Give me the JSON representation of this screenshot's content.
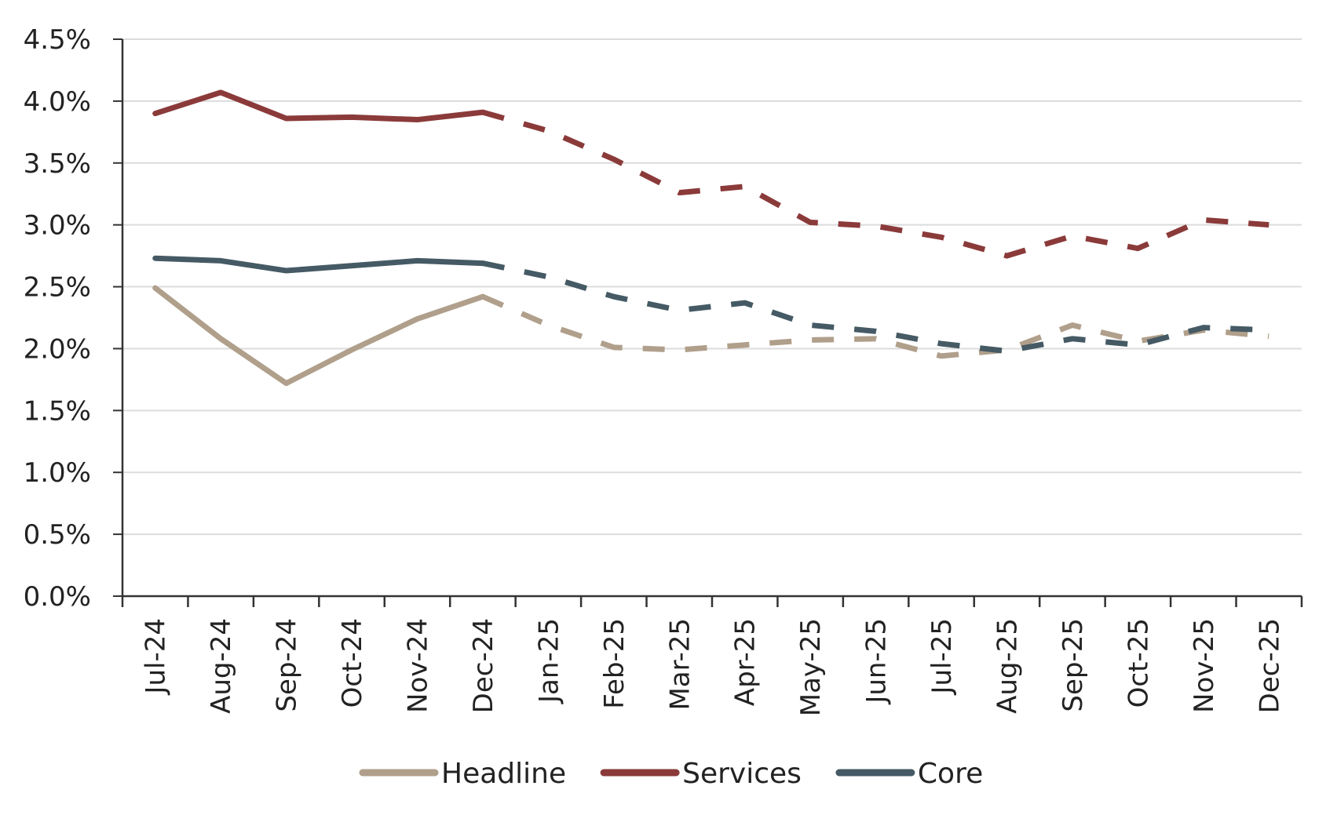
{
  "chart_data": {
    "type": "line",
    "title": "",
    "xlabel": "",
    "ylabel": "",
    "categories": [
      "Jul-24",
      "Aug-24",
      "Sep-24",
      "Oct-24",
      "Nov-24",
      "Dec-24",
      "Jan-25",
      "Feb-25",
      "Mar-25",
      "Apr-25",
      "May-25",
      "Jun-25",
      "Jul-25",
      "Aug-25",
      "Sep-25",
      "Oct-25",
      "Nov-25",
      "Dec-25"
    ],
    "ylim": [
      0,
      4.5
    ],
    "yticks": [
      0,
      0.5,
      1.0,
      1.5,
      2.0,
      2.5,
      3.0,
      3.5,
      4.0,
      4.5
    ],
    "ytick_labels": [
      "0.0%",
      "0.5%",
      "1.0%",
      "1.5%",
      "2.0%",
      "2.5%",
      "3.0%",
      "3.5%",
      "4.0%",
      "4.5%"
    ],
    "grid": true,
    "legend_position": "bottom-center",
    "actual_through": "Dec-24",
    "forecast_style": "dashed",
    "series": [
      {
        "name": "Headline",
        "color": "#b09f8b",
        "values": [
          2.49,
          2.08,
          1.72,
          1.99,
          2.24,
          2.42,
          2.19,
          2.01,
          1.99,
          2.03,
          2.07,
          2.08,
          1.94,
          1.99,
          2.19,
          2.06,
          2.15,
          2.1
        ]
      },
      {
        "name": "Services",
        "color": "#8b3a3a",
        "values": [
          3.9,
          4.07,
          3.86,
          3.87,
          3.85,
          3.91,
          3.76,
          3.53,
          3.26,
          3.31,
          3.02,
          2.99,
          2.9,
          2.75,
          2.91,
          2.81,
          3.04,
          3.0
        ]
      },
      {
        "name": "Core",
        "color": "#455a64",
        "values": [
          2.73,
          2.71,
          2.63,
          2.67,
          2.71,
          2.69,
          2.58,
          2.42,
          2.31,
          2.37,
          2.19,
          2.14,
          2.04,
          1.98,
          2.08,
          2.03,
          2.17,
          2.15
        ]
      }
    ]
  }
}
